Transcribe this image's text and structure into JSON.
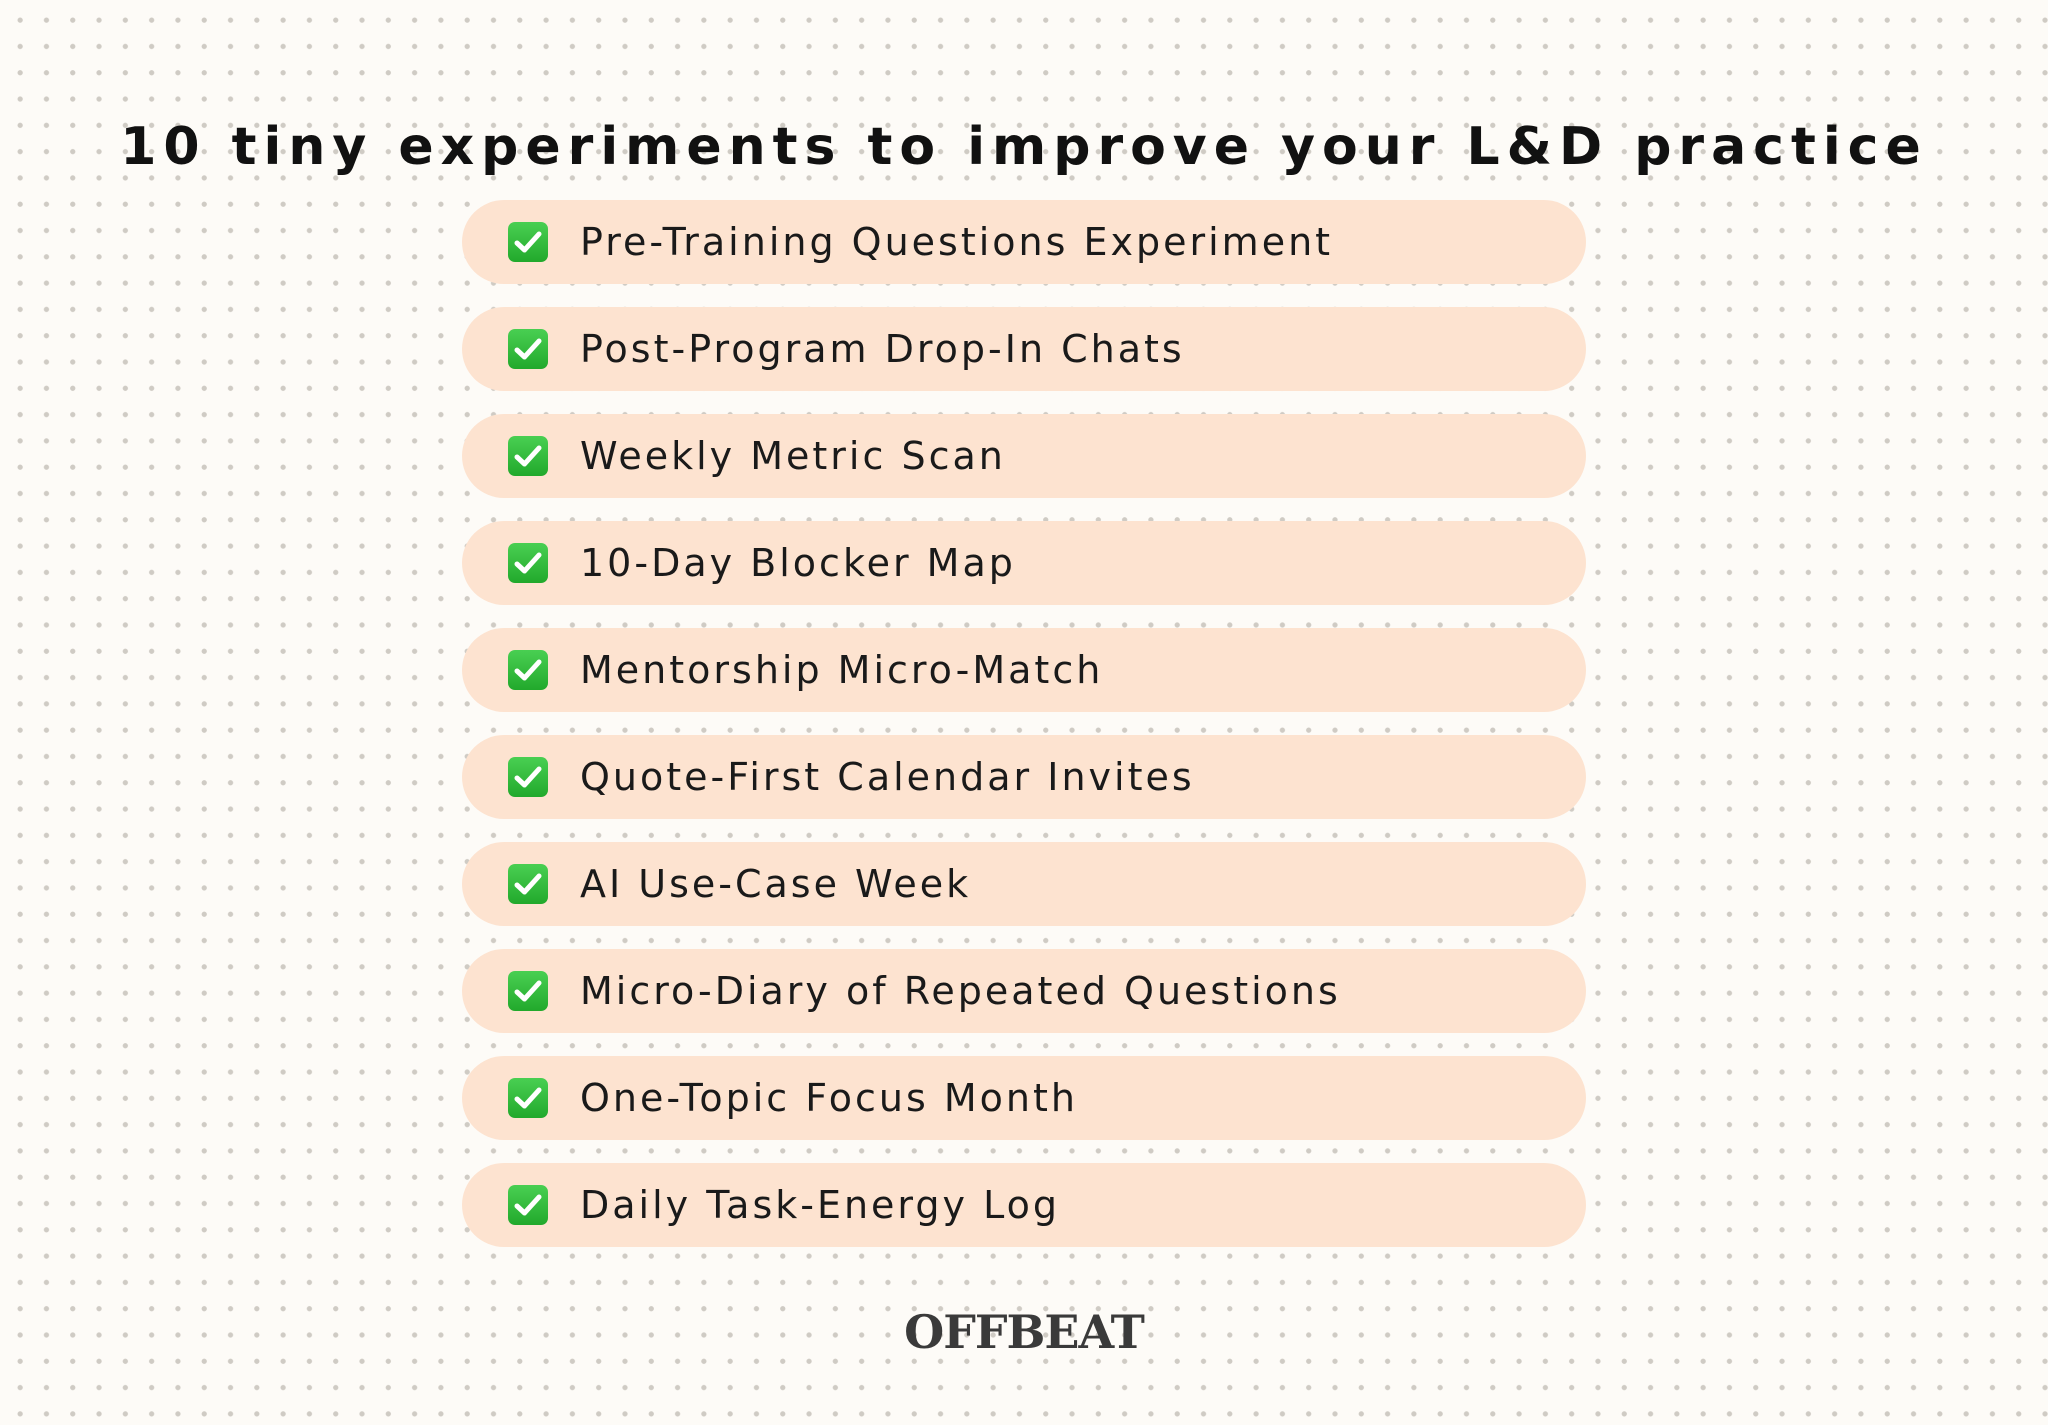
{
  "title": "10 tiny experiments to improve your L&D practice",
  "items": [
    {
      "label": "Pre-Training Questions Experiment",
      "icon": "check-mark-button-icon"
    },
    {
      "label": "Post-Program Drop-In Chats",
      "icon": "check-mark-button-icon"
    },
    {
      "label": "Weekly Metric Scan",
      "icon": "check-mark-button-icon"
    },
    {
      "label": "10-Day Blocker Map",
      "icon": "check-mark-button-icon"
    },
    {
      "label": "Mentorship Micro-Match",
      "icon": "check-mark-button-icon"
    },
    {
      "label": "Quote-First Calendar Invites",
      "icon": "check-mark-button-icon"
    },
    {
      "label": "AI Use-Case Week",
      "icon": "check-mark-button-icon"
    },
    {
      "label": "Micro-Diary of Repeated Questions",
      "icon": "check-mark-button-icon"
    },
    {
      "label": "One-Topic Focus Month",
      "icon": "check-mark-button-icon"
    },
    {
      "label": "Daily Task-Energy Log",
      "icon": "check-mark-button-icon"
    }
  ],
  "brand": "OFFBEAT",
  "colors": {
    "background": "#fdfbf7",
    "pill": "#fde3d0",
    "check": "#34bd3e",
    "text": "#111111"
  }
}
